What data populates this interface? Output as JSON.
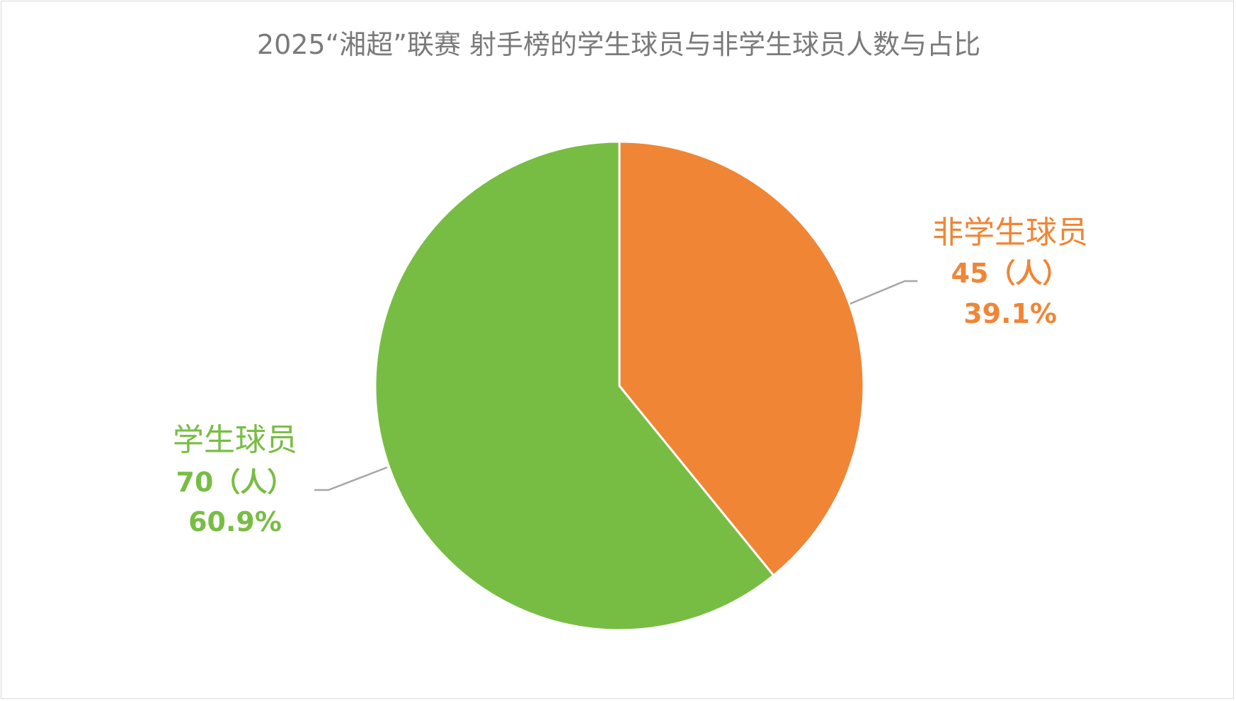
{
  "chart_data": {
    "type": "pie",
    "title": "2025“湘超”联赛 射手榜的学生球员与非学生球员人数与占比",
    "unit": "（人）",
    "slices": [
      {
        "name": "非学生球员",
        "value": 45,
        "percent": "39.1%",
        "color": "#F08535"
      },
      {
        "name": "学生球员",
        "value": 70,
        "percent": "60.9%",
        "color": "#78BD43"
      }
    ],
    "start_angle_deg": 0,
    "direction": "clockwise",
    "slice_border_color": "#FFFFFF",
    "leader_line_color": "#A6A6A6",
    "legend": "none",
    "data_labels": "outside-with-leader-lines"
  }
}
